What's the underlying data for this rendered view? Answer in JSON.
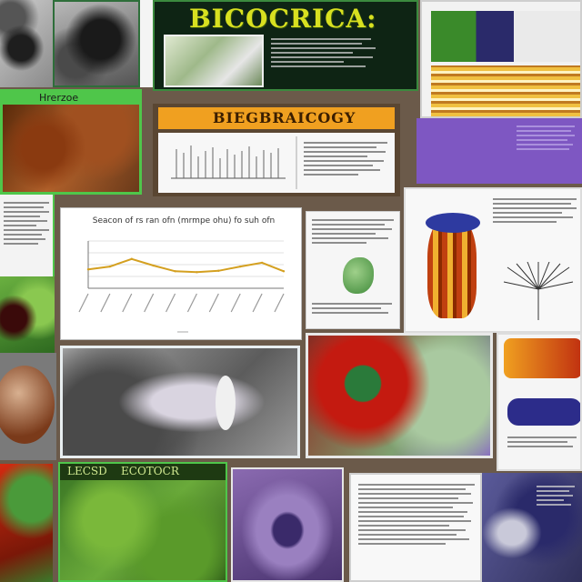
{
  "collage": {
    "main_title": "BICOCRICA:",
    "slide_banner": "BIEGBRAICOGY",
    "green_label": "Hrerzoe",
    "bottom_label": "LECSD    ECOTOCR",
    "chart_caption": "Seacon of rs ran ofn (mrmpe ohu) fo suh ofn"
  },
  "colors": {
    "accent_green": "#4fc64a",
    "banner_orange": "#f0a020",
    "title_yellow": "#d8e020",
    "dark_panel": "#0e2414",
    "purple": "#7e57c2"
  },
  "chart_data": {
    "type": "line",
    "title": "Seacon of rs ran ofn (mrmpe ohu) fo suh ofn",
    "x": [
      1,
      2,
      3,
      4,
      5,
      6,
      7,
      8,
      9,
      10
    ],
    "series": [
      {
        "values": [
          4.0,
          4.6,
          6.2,
          4.8,
          3.6,
          3.4,
          3.7,
          4.6,
          5.4,
          3.6
        ]
      }
    ],
    "ylim": [
      0,
      10
    ],
    "grid": true
  }
}
